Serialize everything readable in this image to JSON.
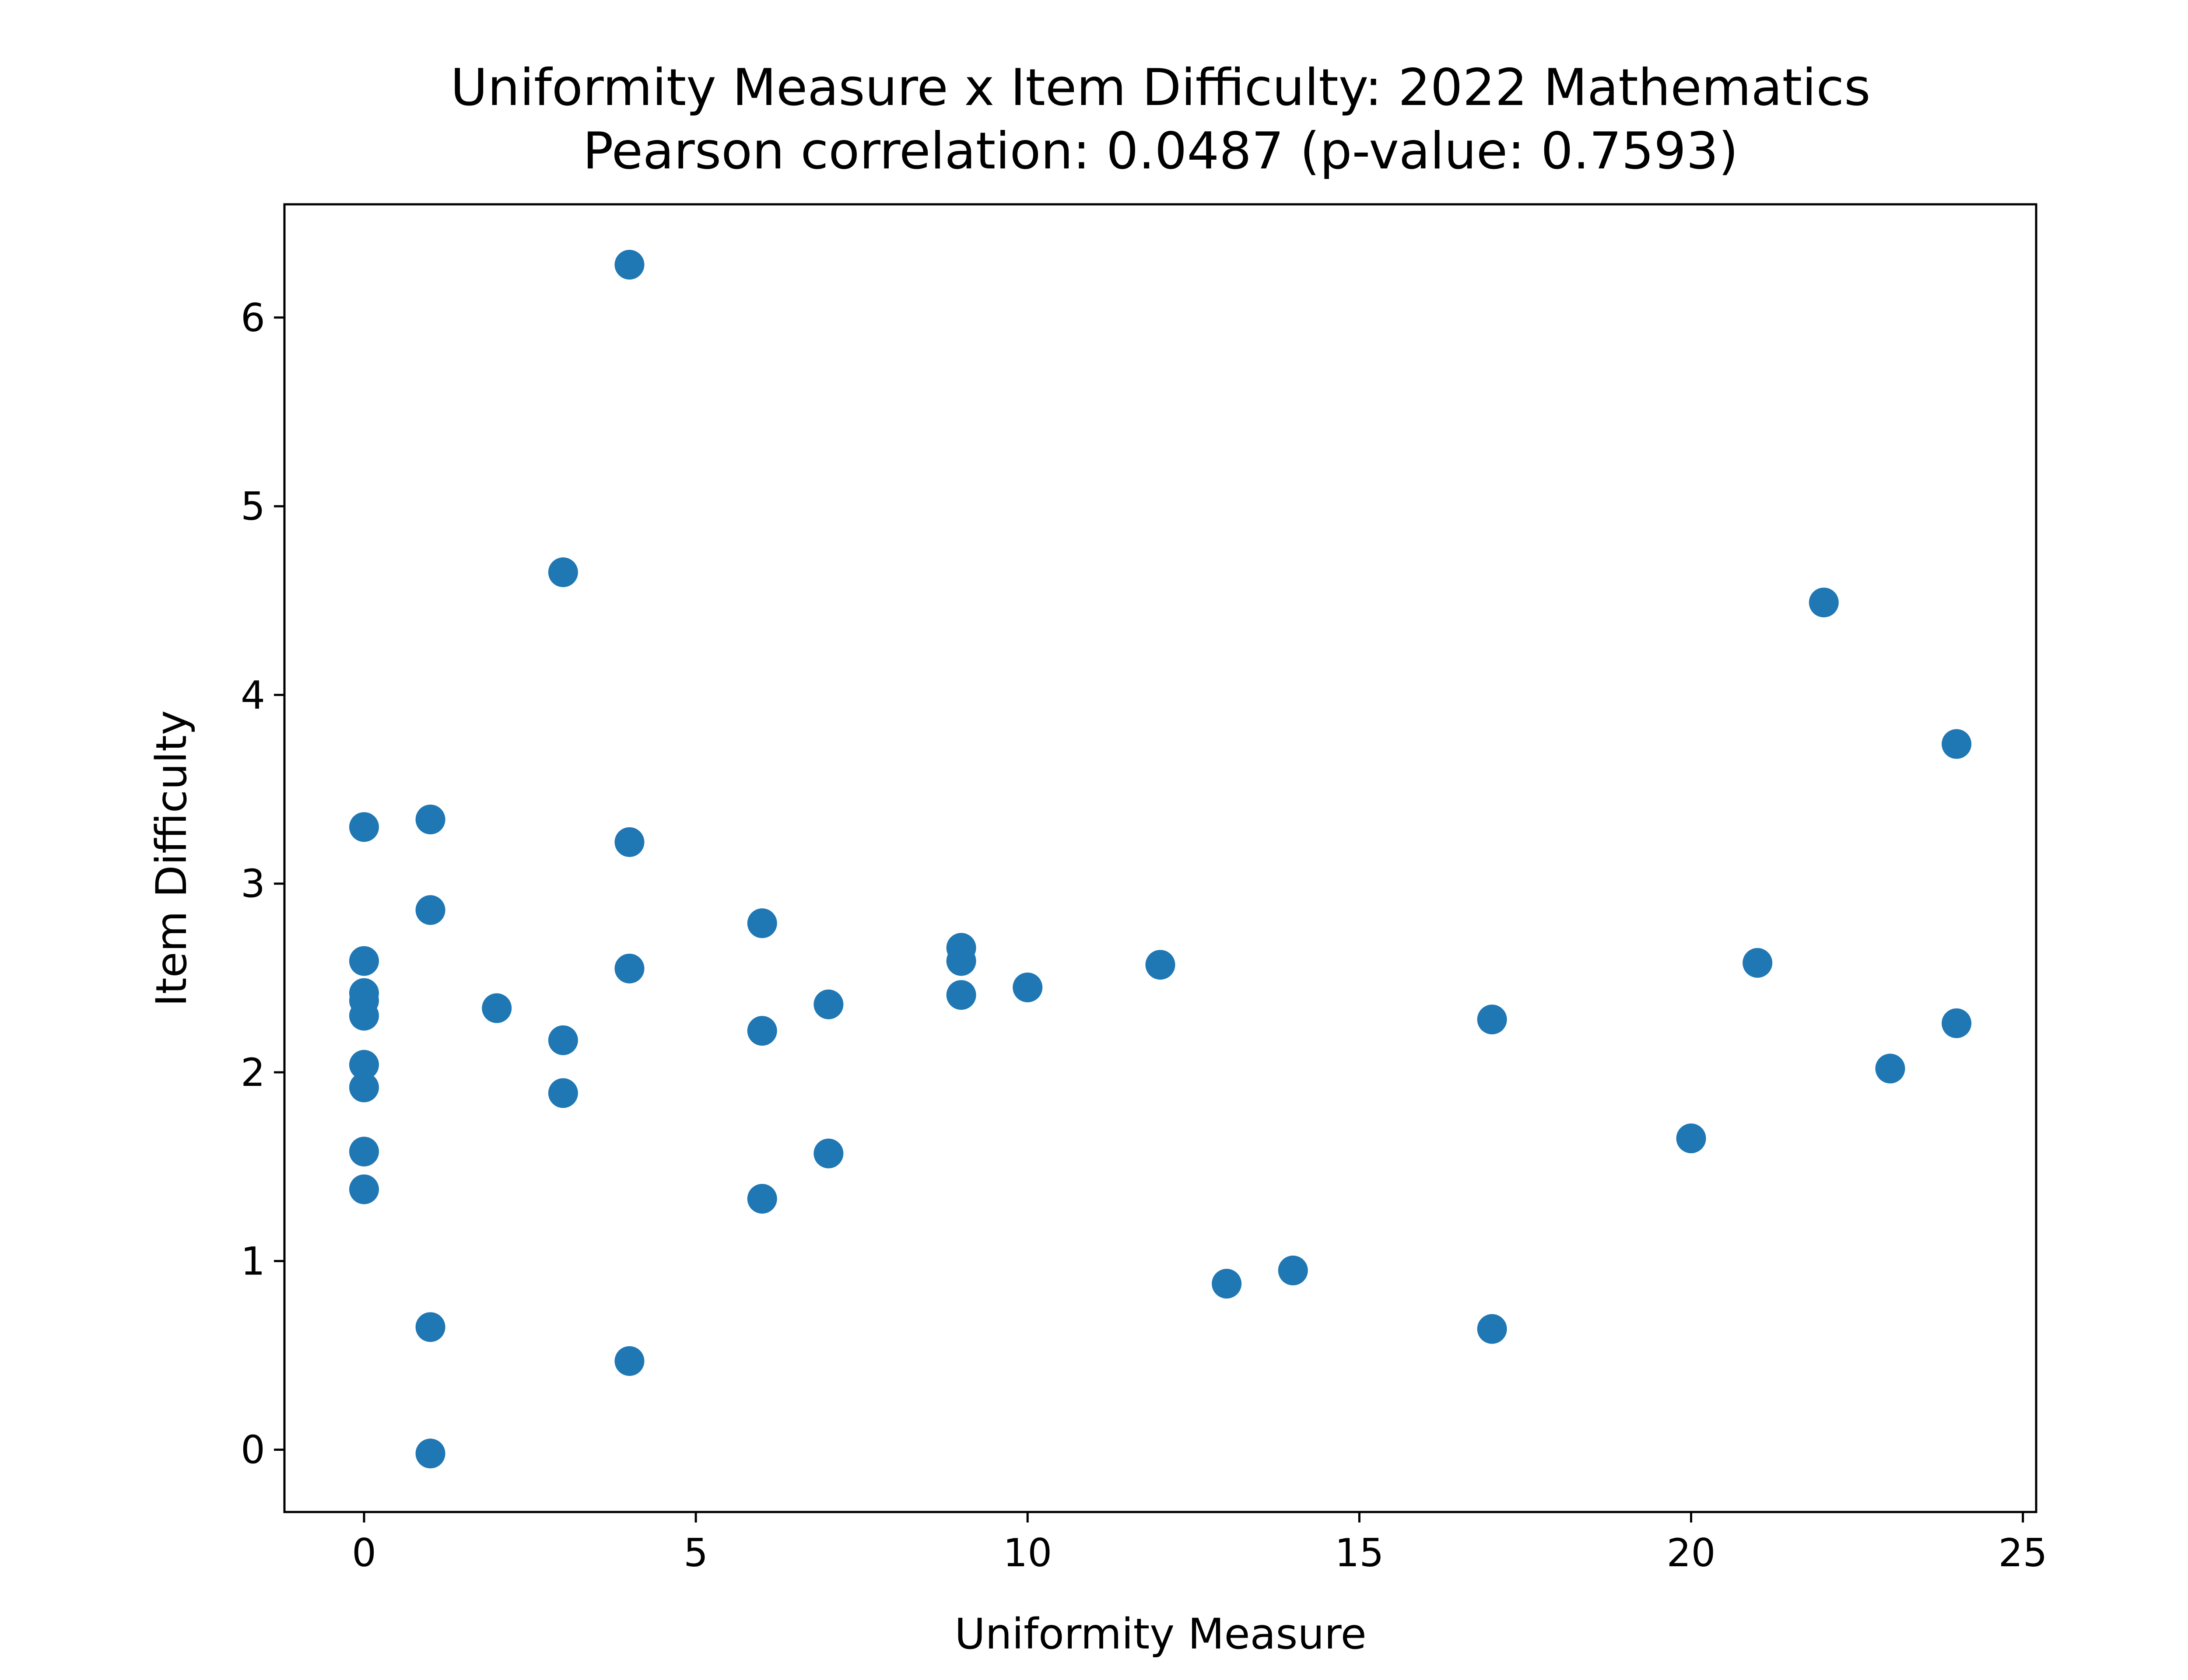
{
  "chart_data": {
    "type": "scatter",
    "title": "Uniformity Measure x Item Difficulty: 2022 Mathematics",
    "subtitle": "Pearson correlation: 0.0487 (p-value: 0.7593)",
    "xlabel": "Uniformity Measure",
    "ylabel": "Item Difficulty",
    "xlim": [
      -1.2,
      25.2
    ],
    "ylim": [
      -0.33,
      6.6
    ],
    "xticks": [
      0,
      5,
      10,
      15,
      20,
      25
    ],
    "yticks": [
      0,
      1,
      2,
      3,
      4,
      5,
      6
    ],
    "grid": false,
    "legend": false,
    "marker_color": "#1f77b4",
    "points": [
      {
        "x": 0,
        "y": 3.3
      },
      {
        "x": 0,
        "y": 2.59
      },
      {
        "x": 0,
        "y": 2.42
      },
      {
        "x": 0,
        "y": 2.38
      },
      {
        "x": 0,
        "y": 2.3
      },
      {
        "x": 0,
        "y": 2.04
      },
      {
        "x": 0,
        "y": 1.92
      },
      {
        "x": 0,
        "y": 1.58
      },
      {
        "x": 0,
        "y": 1.38
      },
      {
        "x": 1,
        "y": 3.34
      },
      {
        "x": 1,
        "y": 2.86
      },
      {
        "x": 1,
        "y": 0.65
      },
      {
        "x": 1,
        "y": -0.02
      },
      {
        "x": 2,
        "y": 2.34
      },
      {
        "x": 3,
        "y": 4.65
      },
      {
        "x": 3,
        "y": 2.17
      },
      {
        "x": 3,
        "y": 1.89
      },
      {
        "x": 4,
        "y": 6.28
      },
      {
        "x": 4,
        "y": 3.22
      },
      {
        "x": 4,
        "y": 2.55
      },
      {
        "x": 4,
        "y": 0.47
      },
      {
        "x": 6,
        "y": 2.79
      },
      {
        "x": 6,
        "y": 2.22
      },
      {
        "x": 6,
        "y": 1.33
      },
      {
        "x": 7,
        "y": 2.36
      },
      {
        "x": 7,
        "y": 1.57
      },
      {
        "x": 9,
        "y": 2.66
      },
      {
        "x": 9,
        "y": 2.59
      },
      {
        "x": 9,
        "y": 2.41
      },
      {
        "x": 10,
        "y": 2.45
      },
      {
        "x": 12,
        "y": 2.57
      },
      {
        "x": 13,
        "y": 0.88
      },
      {
        "x": 14,
        "y": 0.95
      },
      {
        "x": 17,
        "y": 2.28
      },
      {
        "x": 17,
        "y": 0.64
      },
      {
        "x": 20,
        "y": 1.65
      },
      {
        "x": 21,
        "y": 2.58
      },
      {
        "x": 22,
        "y": 4.49
      },
      {
        "x": 23,
        "y": 2.02
      },
      {
        "x": 24,
        "y": 3.74
      },
      {
        "x": 24,
        "y": 2.26
      }
    ]
  }
}
